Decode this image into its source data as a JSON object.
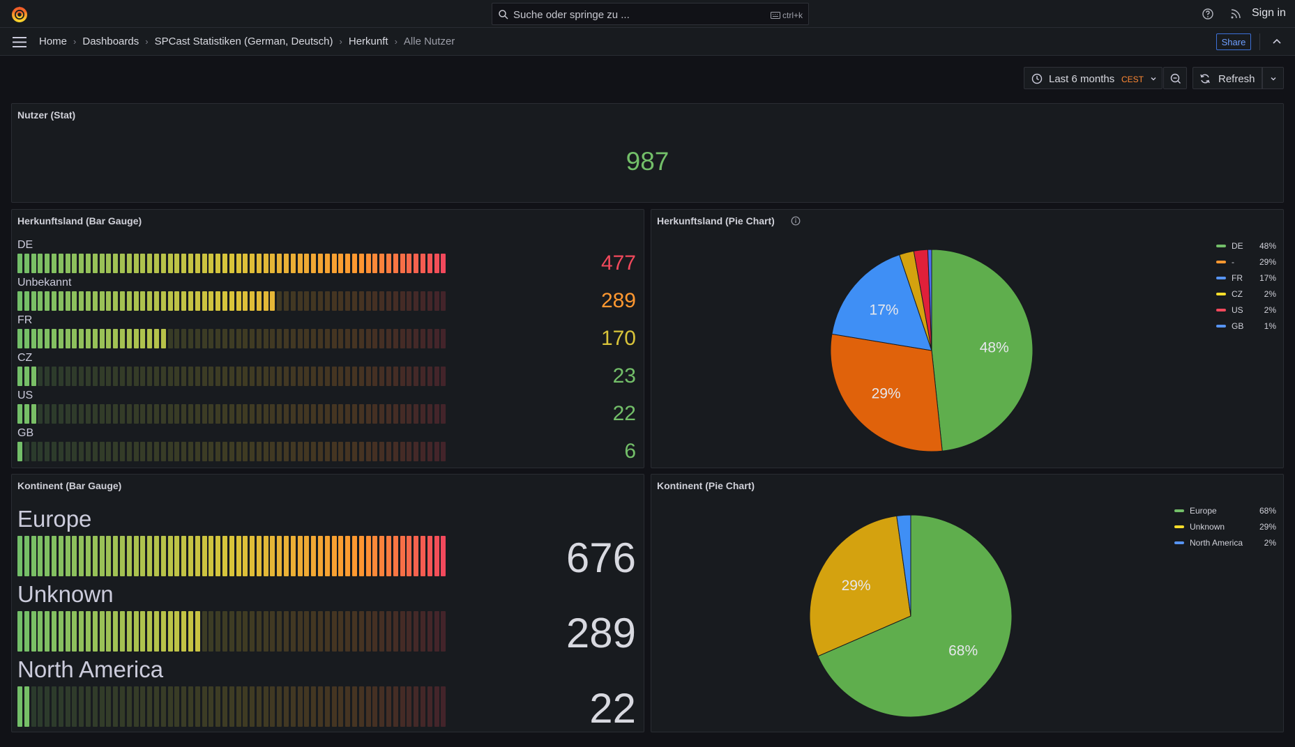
{
  "search": {
    "placeholder": "Suche oder springe zu ...",
    "shortcut": "ctrl+k"
  },
  "topbar": {
    "signin_label": "Sign in"
  },
  "breadcrumb": [
    "Home",
    "Dashboards",
    "SPCast Statistiken (German, Deutsch)",
    "Herkunft",
    "Alle Nutzer"
  ],
  "navbar": {
    "share_label": "Share"
  },
  "toolbar": {
    "time_range": "Last 6 months",
    "timezone": "CEST",
    "refresh_label": "Refresh"
  },
  "colors": {
    "green": "#73bf69",
    "orange": "#ff9830",
    "yellow": "#fade2a",
    "red": "#f2495c",
    "blue": "#5794f2",
    "accent_blue": "#6e9fff"
  },
  "panels": {
    "stat": {
      "title": "Nutzer (Stat)",
      "value": "987"
    },
    "country_bar": {
      "title": "Herkunftsland (Bar Gauge)",
      "max": 477,
      "rows": [
        {
          "label": "DE",
          "value": "477",
          "num": 477,
          "color": "#f2495c"
        },
        {
          "label": "Unbekannt",
          "value": "289",
          "num": 289,
          "color": "#ff9830"
        },
        {
          "label": "FR",
          "value": "170",
          "num": 170,
          "color": "#d9c43a"
        },
        {
          "label": "CZ",
          "value": "23",
          "num": 23,
          "color": "#73bf69"
        },
        {
          "label": "US",
          "value": "22",
          "num": 22,
          "color": "#73bf69"
        },
        {
          "label": "GB",
          "value": "6",
          "num": 6,
          "color": "#73bf69"
        }
      ]
    },
    "country_pie": {
      "title": "Herkunftsland (Pie Chart)",
      "legend": [
        {
          "name": "DE",
          "pct": "48%",
          "color": "#73bf69"
        },
        {
          "name": "-",
          "pct": "29%",
          "color": "#ff9830"
        },
        {
          "name": "FR",
          "pct": "17%",
          "color": "#5794f2"
        },
        {
          "name": "CZ",
          "pct": "2%",
          "color": "#fade2a"
        },
        {
          "name": "US",
          "pct": "2%",
          "color": "#f2495c"
        },
        {
          "name": "GB",
          "pct": "1%",
          "color": "#5794f2"
        }
      ]
    },
    "continent_bar": {
      "title": "Kontinent (Bar Gauge)",
      "max": 676,
      "rows": [
        {
          "label": "Europe",
          "value": "676",
          "num": 676
        },
        {
          "label": "Unknown",
          "value": "289",
          "num": 289
        },
        {
          "label": "North America",
          "value": "22",
          "num": 22
        }
      ]
    },
    "continent_pie": {
      "title": "Kontinent (Pie Chart)",
      "legend": [
        {
          "name": "Europe",
          "pct": "68%",
          "color": "#73bf69"
        },
        {
          "name": "Unknown",
          "pct": "29%",
          "color": "#fade2a"
        },
        {
          "name": "North America",
          "pct": "2%",
          "color": "#5794f2"
        }
      ]
    }
  },
  "chart_data": [
    {
      "type": "bar",
      "title": "Herkunftsland (Bar Gauge)",
      "categories": [
        "DE",
        "Unbekannt",
        "FR",
        "CZ",
        "US",
        "GB"
      ],
      "values": [
        477,
        289,
        170,
        23,
        22,
        6
      ]
    },
    {
      "type": "pie",
      "title": "Herkunftsland (Pie Chart)",
      "categories": [
        "DE",
        "-",
        "FR",
        "CZ",
        "US",
        "GB"
      ],
      "values": [
        477,
        289,
        170,
        23,
        22,
        6
      ],
      "slice_labels": [
        "48%",
        "29%",
        "17%",
        "",
        "",
        ""
      ],
      "legend_placement": "right"
    },
    {
      "type": "bar",
      "title": "Kontinent (Bar Gauge)",
      "categories": [
        "Europe",
        "Unknown",
        "North America"
      ],
      "values": [
        676,
        289,
        22
      ]
    },
    {
      "type": "pie",
      "title": "Kontinent (Pie Chart)",
      "categories": [
        "Europe",
        "Unknown",
        "North America"
      ],
      "values": [
        676,
        289,
        22
      ],
      "slice_labels": [
        "68%",
        "29%",
        ""
      ],
      "legend_placement": "right"
    }
  ]
}
